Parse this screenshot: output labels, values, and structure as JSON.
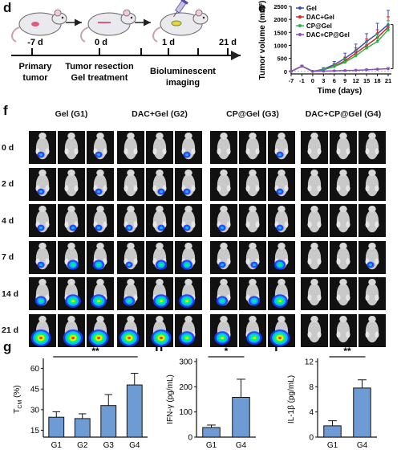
{
  "panels": {
    "d": "d",
    "e": "e",
    "f": "f",
    "g": "g",
    "h": "h",
    "i": "i"
  },
  "timeline": {
    "days": [
      "-7 d",
      "0 d",
      "1 d",
      "21 d"
    ],
    "labels": [
      [
        "Primary",
        "tumor"
      ],
      [
        "Tumor resection",
        "Gel treatment"
      ],
      [
        "Bioluminescent",
        "imaging"
      ]
    ]
  },
  "imaging": {
    "groups": [
      "Gel (G1)",
      "DAC+Gel (G2)",
      "CP@Gel (G3)",
      "DAC+CP@Gel (G4)"
    ],
    "days": [
      "0 d",
      "2 d",
      "4 d",
      "7 d",
      "14 d",
      "21 d"
    ],
    "signal": [
      [
        [
          1,
          0,
          1
        ],
        [
          1,
          0,
          1
        ],
        [
          1,
          1,
          1
        ],
        [
          1,
          2,
          2
        ],
        [
          2,
          3,
          3
        ],
        [
          4,
          4,
          4
        ]
      ],
      [
        [
          0,
          0,
          1
        ],
        [
          0,
          1,
          1
        ],
        [
          1,
          1,
          1
        ],
        [
          1,
          2,
          2
        ],
        [
          2,
          3,
          3
        ],
        [
          4,
          4,
          3
        ]
      ],
      [
        [
          0,
          0,
          1
        ],
        [
          0,
          0,
          1
        ],
        [
          1,
          0,
          1
        ],
        [
          1,
          1,
          2
        ],
        [
          2,
          2,
          3
        ],
        [
          3,
          3,
          4
        ]
      ],
      [
        [
          0,
          0,
          0
        ],
        [
          0,
          0,
          0
        ],
        [
          0,
          0,
          0
        ],
        [
          0,
          0,
          1
        ],
        [
          0,
          0,
          0
        ],
        [
          0,
          0,
          0
        ]
      ]
    ]
  },
  "chart_data": [
    {
      "id": "e",
      "type": "line",
      "ylabel": "Tumor volume (mm³)",
      "xlabel": "Time (days)",
      "x": [
        -7,
        -1,
        0,
        3,
        6,
        9,
        12,
        15,
        18,
        21
      ],
      "xticks": [
        "-7",
        "-1",
        "0",
        "3",
        "6",
        "9",
        "12",
        "15",
        "18",
        "21"
      ],
      "ylim": [
        -100,
        2500
      ],
      "yticks": [
        0,
        500,
        1000,
        1500,
        2000,
        2500
      ],
      "series": [
        {
          "name": "Gel",
          "color": "#3a4fb5",
          "values": [
            0,
            200,
            0,
            80,
            260,
            500,
            800,
            1150,
            1450,
            1800
          ],
          "err": [
            20,
            40,
            20,
            60,
            120,
            200,
            250,
            300,
            400,
            550
          ]
        },
        {
          "name": "DAC+Gel",
          "color": "#d62828",
          "values": [
            0,
            200,
            0,
            60,
            200,
            400,
            700,
            1000,
            1300,
            1700
          ],
          "err": [
            20,
            40,
            20,
            50,
            100,
            150,
            200,
            250,
            300,
            400
          ]
        },
        {
          "name": "CP@Gel",
          "color": "#2bb34a",
          "values": [
            0,
            200,
            0,
            60,
            180,
            350,
            600,
            900,
            1150,
            1600
          ],
          "err": [
            20,
            40,
            20,
            50,
            90,
            150,
            200,
            250,
            300,
            350
          ]
        },
        {
          "name": "DAC+CP@Gel",
          "color": "#8a4fc0",
          "values": [
            0,
            200,
            0,
            10,
            20,
            30,
            40,
            60,
            80,
            100
          ],
          "err": [
            20,
            40,
            10,
            10,
            10,
            15,
            20,
            30,
            30,
            40
          ]
        }
      ],
      "annotation": "***"
    },
    {
      "id": "g",
      "type": "bar",
      "ylabel": "T",
      "ylabel_sub": "CM",
      "ylabel_suffix": " (%)",
      "categories": [
        "G1",
        "G2",
        "G3",
        "G4"
      ],
      "values": [
        24.5,
        23.5,
        33,
        48
      ],
      "err": [
        4,
        3.5,
        8,
        8.5
      ],
      "ylim": [
        10,
        65
      ],
      "yticks": [
        15,
        30,
        45,
        60
      ],
      "annotation": "**",
      "bracket": [
        0,
        3
      ]
    },
    {
      "id": "h",
      "type": "bar",
      "ylabel": "IFN-γ (pg/mL)",
      "categories": [
        "G1",
        "G4"
      ],
      "values": [
        38,
        158
      ],
      "err": [
        10,
        72
      ],
      "ylim": [
        0,
        300
      ],
      "yticks": [
        0,
        100,
        200,
        300
      ],
      "annotation": "*",
      "bracket": [
        0,
        1
      ]
    },
    {
      "id": "i",
      "type": "bar",
      "ylabel": "IL-1β (pg/mL)",
      "categories": [
        "G1",
        "G4"
      ],
      "values": [
        1.8,
        7.8
      ],
      "err": [
        0.8,
        1.3
      ],
      "ylim": [
        0,
        12
      ],
      "yticks": [
        0,
        4,
        8,
        12
      ],
      "annotation": "**",
      "bracket": [
        0,
        1
      ]
    }
  ]
}
